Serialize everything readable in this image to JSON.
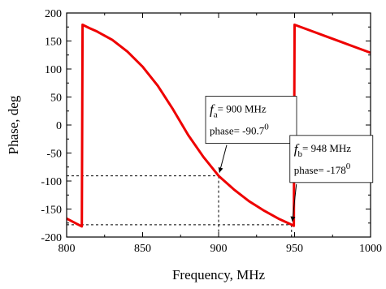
{
  "chart_data": {
    "type": "line",
    "xlabel": "Frequency, MHz",
    "ylabel": "Phase, deg",
    "xlim": [
      800,
      1000
    ],
    "ylim": [
      -200,
      200
    ],
    "x_ticks": [
      800,
      850,
      900,
      950,
      1000
    ],
    "y_ticks": [
      200,
      150,
      100,
      50,
      0,
      -50,
      -100,
      -150,
      -200
    ],
    "grid": false,
    "color": "#ee0000",
    "series": [
      {
        "x": [
          800,
          805,
          810,
          810.5,
          815,
          820,
          830,
          840,
          850,
          860,
          870,
          880,
          890,
          900,
          910,
          920,
          930,
          940,
          948,
          949.5,
          950,
          960,
          970,
          980,
          990,
          1000
        ],
        "y": [
          -167,
          -174,
          -181,
          179,
          173,
          167,
          152,
          131,
          104,
          70,
          28,
          -18,
          -57,
          -90.7,
          -115,
          -136,
          -153,
          -168,
          -178,
          -180,
          179,
          169,
          159,
          149,
          139,
          129
        ]
      }
    ],
    "annotations": [
      {
        "symbol": "f",
        "subscript": "a",
        "freq_text": "= 900 MHz",
        "phase_text": "phase= -90.7",
        "superscript": "0",
        "point": [
          900,
          -90.7
        ]
      },
      {
        "symbol": "f",
        "subscript": "b",
        "freq_text": "= 948 MHz",
        "phase_text": "phase= -178",
        "superscript": "0",
        "point": [
          948,
          -178
        ]
      }
    ]
  }
}
